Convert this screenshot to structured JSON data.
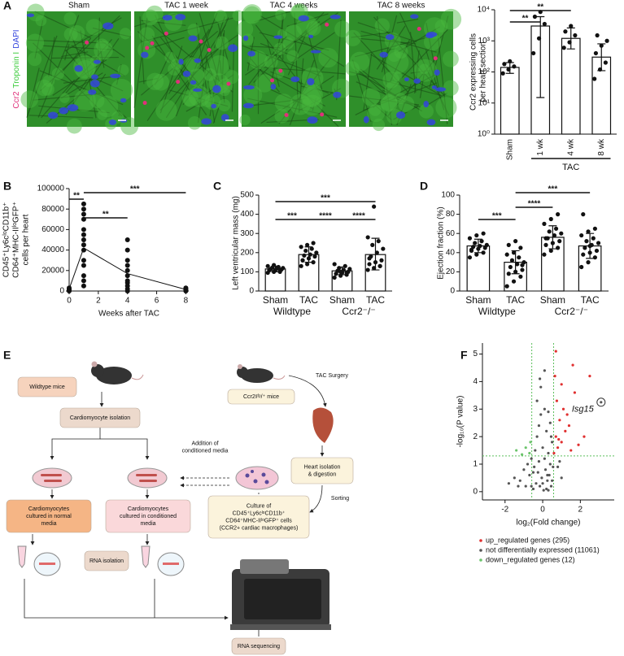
{
  "panel_labels": [
    "A",
    "B",
    "C",
    "D",
    "E",
    "F"
  ],
  "micrographs": {
    "stain_labels": [
      "Ccr2",
      "Troponin I",
      "DAPI"
    ],
    "stain_colors": [
      "#e0307a",
      "#3dcc3d",
      "#3344dd"
    ],
    "titles": [
      "Sham",
      "TAC 1 week",
      "TAC 4 weeks",
      "TAC 8 weeks"
    ]
  },
  "chart_data": [
    {
      "type": "bar",
      "ylabel": [
        "Ccr2 expressing cells",
        "per heart section"
      ],
      "log_scale": true,
      "ylim": [
        1,
        10000
      ],
      "yticks": [
        {
          "value": 1,
          "label": "10⁰"
        },
        {
          "value": 10,
          "label": "10¹"
        },
        {
          "value": 100,
          "label": "10²"
        },
        {
          "value": 1000,
          "label": "10³"
        },
        {
          "value": 10000,
          "label": "10⁴"
        }
      ],
      "categories": [
        "Sham",
        "1 wk",
        "4 wk",
        "8 wk"
      ],
      "rotate_labels": true,
      "values": [
        140,
        3000,
        1200,
        300
      ],
      "error_low": [
        90,
        15,
        550,
        110
      ],
      "error_high": [
        200,
        6000,
        2600,
        800
      ],
      "points": [
        [
          90,
          120,
          150,
          180,
          220
        ],
        [
          400,
          1200,
          3500,
          6000,
          8500
        ],
        [
          600,
          900,
          1500,
          2000,
          3000
        ],
        [
          60,
          120,
          200,
          400,
          700,
          1000,
          1500
        ]
      ],
      "groups": [
        {
          "name": "TAC",
          "span": [
            1,
            3
          ]
        }
      ],
      "group_line": true,
      "comparisons": [
        {
          "pair": [
            0,
            1
          ],
          "label": "**"
        },
        {
          "pair": [
            0,
            2
          ],
          "label": "**"
        }
      ]
    },
    {
      "type": "line",
      "ylabel": [
        "CD45⁺Ly6cˡᵒCD11b⁺",
        "CD64⁺MHC-IIˡᵒGFP⁺",
        "cells per heart"
      ],
      "xlabel": "Weeks after TAC",
      "xlim": [
        0,
        8.2
      ],
      "xticks": [
        0,
        2,
        4,
        6,
        8
      ],
      "ylim": [
        0,
        100000
      ],
      "yticks": [
        0,
        20000,
        40000,
        60000,
        80000,
        100000
      ],
      "x": [
        0,
        1,
        4,
        8
      ],
      "values": [
        2000,
        42000,
        17000,
        1500
      ],
      "points": [
        [
          0,
          500,
          1000,
          1500,
          2000,
          3000
        ],
        [
          5000,
          10000,
          15000,
          25000,
          30000,
          40000,
          45000,
          50000,
          55000,
          60000,
          70000,
          75000,
          80000,
          85000
        ],
        [
          0,
          2000,
          5000,
          8000,
          10000,
          15000,
          20000,
          25000,
          30000,
          40000,
          50000
        ],
        [
          0,
          1000,
          2000,
          3000
        ]
      ],
      "comparisons": [
        {
          "pair": [
            0,
            1
          ],
          "label": "**"
        },
        {
          "pair": [
            1,
            2
          ],
          "label": "**"
        },
        {
          "pair": [
            1,
            3
          ],
          "label": "***"
        }
      ]
    },
    {
      "type": "bar",
      "ylabel": [
        "Left ventricular mass (mg)"
      ],
      "ylim": [
        0,
        500
      ],
      "yticks": [
        0,
        100,
        200,
        300,
        400,
        500
      ],
      "categories": [
        "Sham",
        "TAC",
        "Sham",
        "TAC"
      ],
      "values": [
        115,
        190,
        105,
        190
      ],
      "error_low": [
        100,
        150,
        85,
        110
      ],
      "error_high": [
        130,
        230,
        125,
        275
      ],
      "points": [
        [
          95,
          100,
          105,
          108,
          110,
          112,
          115,
          118,
          120,
          122,
          125,
          130,
          135,
          100,
          110
        ],
        [
          130,
          140,
          150,
          160,
          170,
          180,
          185,
          190,
          200,
          210,
          220,
          230,
          240,
          250,
          160
        ],
        [
          70,
          80,
          85,
          90,
          95,
          100,
          105,
          110,
          115,
          120,
          130,
          140,
          100,
          95
        ],
        [
          110,
          120,
          130,
          140,
          150,
          160,
          180,
          200,
          220,
          240,
          260,
          280,
          440,
          130,
          170
        ]
      ],
      "groups": [
        {
          "name": "Wildtype",
          "span": [
            0,
            1
          ]
        },
        {
          "name": "Ccr2⁻/⁻",
          "span": [
            2,
            3
          ]
        }
      ],
      "comparisons": [
        {
          "pair": [
            0,
            1
          ],
          "label": "***"
        },
        {
          "pair": [
            1,
            2
          ],
          "label": "****"
        },
        {
          "pair": [
            2,
            3
          ],
          "label": "****"
        },
        {
          "pair": [
            0,
            3
          ],
          "label": "***"
        }
      ]
    },
    {
      "type": "bar",
      "ylabel": [
        "Ejection fraction (%)"
      ],
      "ylim": [
        0,
        100
      ],
      "yticks": [
        0,
        20,
        40,
        60,
        80,
        100
      ],
      "categories": [
        "Sham",
        "TAC",
        "Sham",
        "TAC"
      ],
      "values": [
        47,
        30,
        56,
        47
      ],
      "error_low": [
        40,
        18,
        44,
        34
      ],
      "error_high": [
        54,
        42,
        68,
        60
      ],
      "points": [
        [
          35,
          38,
          40,
          42,
          44,
          45,
          46,
          47,
          48,
          50,
          52,
          55,
          58,
          60,
          43
        ],
        [
          5,
          10,
          15,
          18,
          20,
          22,
          25,
          28,
          30,
          32,
          35,
          38,
          40,
          45,
          48,
          52,
          27
        ],
        [
          38,
          42,
          45,
          48,
          50,
          52,
          55,
          58,
          60,
          62,
          65,
          70,
          75,
          80,
          55
        ],
        [
          25,
          30,
          35,
          38,
          40,
          42,
          45,
          48,
          50,
          52,
          55,
          58,
          62,
          65,
          80,
          47
        ]
      ],
      "groups": [
        {
          "name": "Wildtype",
          "span": [
            0,
            1
          ]
        },
        {
          "name": "Ccr2⁻/⁻",
          "span": [
            2,
            3
          ]
        }
      ],
      "comparisons": [
        {
          "pair": [
            0,
            1
          ],
          "label": "***"
        },
        {
          "pair": [
            1,
            2
          ],
          "label": "****"
        },
        {
          "pair": [
            1,
            3
          ],
          "label": "***"
        }
      ]
    },
    {
      "type": "scatter",
      "xlabel": "log₂(Fold change)",
      "ylabel": [
        "-log₁₀(P value)"
      ],
      "xlim": [
        -3.2,
        3.8
      ],
      "xticks": [
        -2,
        0,
        2
      ],
      "ylim": [
        -0.3,
        5.4
      ],
      "yticks": [
        0,
        1,
        2,
        3,
        4,
        5
      ],
      "x_thresholds": [
        -0.58,
        0.58
      ],
      "y_threshold": 1.3,
      "threshold_color": "#5cbf5c",
      "series": [
        {
          "name": "up_regulated genes (295)",
          "color": "#e03030",
          "x": [
            0.6,
            0.7,
            0.8,
            0.9,
            1.0,
            1.1,
            1.2,
            1.3,
            1.5,
            1.7,
            0.65,
            0.75,
            0.85,
            1.4,
            1.9,
            2.2,
            0.7,
            1.0,
            1.6,
            2.5
          ],
          "values": [
            1.4,
            2.0,
            1.6,
            2.6,
            1.8,
            3.0,
            2.2,
            2.8,
            1.5,
            3.6,
            4.2,
            3.3,
            1.9,
            2.4,
            1.7,
            2.0,
            5.1,
            3.9,
            4.6,
            4.2
          ]
        },
        {
          "name": "not differentially expressed (11061)",
          "color": "#555555",
          "x": [
            -1.8,
            -1.5,
            -1.2,
            -1.0,
            -0.9,
            -0.8,
            -0.7,
            -0.6,
            -0.5,
            -0.45,
            -0.4,
            -0.35,
            -0.3,
            -0.25,
            -0.2,
            -0.15,
            -0.1,
            -0.05,
            0,
            0.05,
            0.1,
            0.15,
            0.2,
            0.25,
            0.3,
            0.35,
            0.4,
            0.45,
            0.5,
            0.55,
            -0.3,
            -0.1,
            0.1,
            0.3,
            0.2,
            0,
            -0.2,
            0.4,
            -0.5,
            0.5,
            0.3,
            -0.6,
            0.1,
            0.25,
            -0.15,
            0.45,
            1.0,
            0.8,
            0.9,
            -1.3
          ],
          "values": [
            0.3,
            0.5,
            0.4,
            0.8,
            0.2,
            1.0,
            0.6,
            1.2,
            0.1,
            0.9,
            1.5,
            0.3,
            2.0,
            0.7,
            1.1,
            0.2,
            2.8,
            0.5,
            1.6,
            0.05,
            3.0,
            0.8,
            2.2,
            0.4,
            1.4,
            0.6,
            2.5,
            0.2,
            1.8,
            0.9,
            3.3,
            3.8,
            4.4,
            2.9,
            0.1,
            0.3,
            2.4,
            1.0,
            0.7,
            0.4,
            0.05,
            0.2,
            1.2,
            0.6,
            4.1,
            2.0,
            0.5,
            0.9,
            1.1,
            0.2
          ]
        },
        {
          "name": "down_regulated genes (12)",
          "color": "#6cc46c",
          "x": [
            -0.7,
            -0.9,
            -1.1,
            -1.4,
            -0.65
          ],
          "values": [
            1.4,
            1.6,
            1.35,
            1.5,
            1.8
          ]
        }
      ],
      "annotation": {
        "text": "Isg15",
        "x": 3.1,
        "y": 3.25
      }
    }
  ],
  "diagram": {
    "nodes": [
      {
        "lines": [
          "Wildtype mice"
        ]
      },
      {
        "lines": [
          "Cardiomyocyte isolation"
        ]
      },
      {
        "lines": [
          "Addition of",
          "conditioned media"
        ]
      },
      {
        "lines": [
          "Ccr2ᵍᶠᵖ/⁺ mice"
        ]
      },
      {
        "lines": [
          "TAC Surgery"
        ]
      },
      {
        "lines": [
          "Heart isolation",
          "& digestion"
        ]
      },
      {
        "lines": [
          "Sorting"
        ]
      },
      {
        "lines": [
          "Culture of",
          "CD45⁺Ly6cˡᵒCD11b⁺",
          "CD64⁺MHC-IIˡᵒGFP⁺ cells",
          "(CCR2+ cardiac macrophages)"
        ]
      },
      {
        "lines": [
          "Cardiomyocytes",
          "cultured in normal",
          "media"
        ]
      },
      {
        "lines": [
          "Cardiomyocytes",
          "cultured in conditioned",
          "media"
        ]
      },
      {
        "lines": [
          "RNA isolation"
        ]
      },
      {
        "lines": [
          "RNA sequencing"
        ]
      }
    ]
  }
}
